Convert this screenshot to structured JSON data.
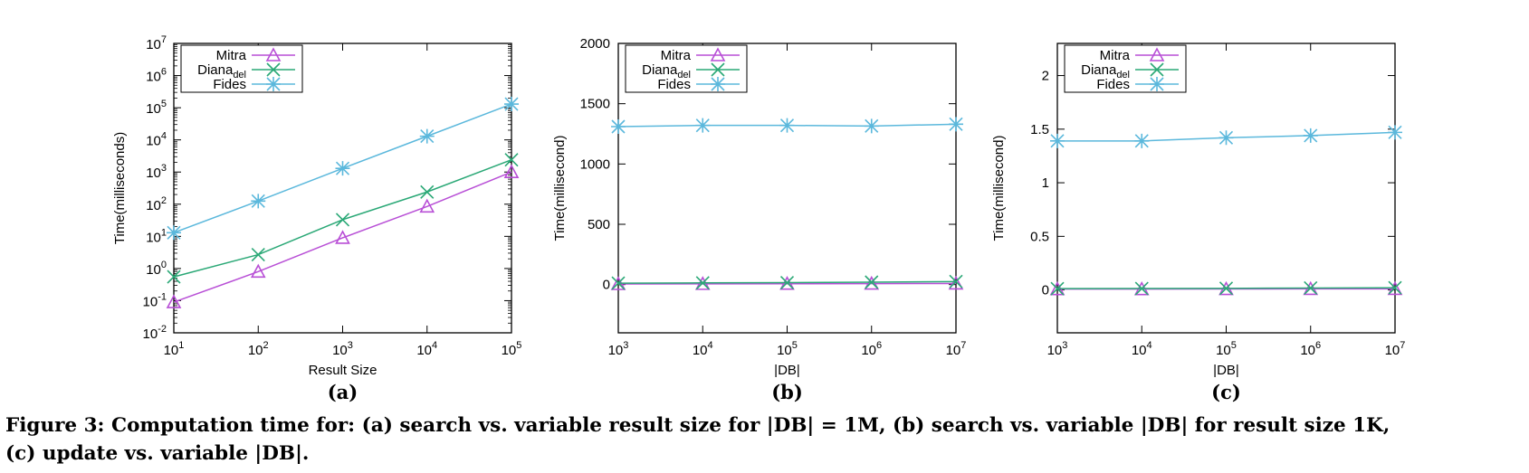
{
  "caption": {
    "line1": "Figure 3: Computation time for: (a) search vs. variable result size for |DB| = 1M, (b) search vs. variable |DB| for result size 1K,",
    "line2": "(c) update vs. variable |DB|."
  },
  "colors": {
    "Mitra": "#b84fd6",
    "Diana_del": "#2aa876",
    "Fides": "#5bb8dc"
  },
  "chart_data": [
    {
      "type": "line",
      "sublabel": "(a)",
      "xlabel": "Result Size",
      "ylabel": "Time(milliseconds)",
      "xscale": "log",
      "yscale": "log",
      "xlim": [
        10,
        100000
      ],
      "ylim": [
        0.01,
        10000000
      ],
      "x_ticks": [
        {
          "base": "10",
          "exp": "1"
        },
        {
          "base": "10",
          "exp": "2"
        },
        {
          "base": "10",
          "exp": "3"
        },
        {
          "base": "10",
          "exp": "4"
        },
        {
          "base": "10",
          "exp": "5"
        }
      ],
      "y_ticks": [
        {
          "base": "10",
          "exp": "-2"
        },
        {
          "base": "10",
          "exp": "-1"
        },
        {
          "base": "10",
          "exp": "0"
        },
        {
          "base": "10",
          "exp": "1"
        },
        {
          "base": "10",
          "exp": "2"
        },
        {
          "base": "10",
          "exp": "3"
        },
        {
          "base": "10",
          "exp": "4"
        },
        {
          "base": "10",
          "exp": "5"
        },
        {
          "base": "10",
          "exp": "6"
        },
        {
          "base": "10",
          "exp": "7"
        }
      ],
      "x": [
        10,
        100,
        1000,
        10000,
        100000
      ],
      "legend_position": "top-left",
      "series": [
        {
          "name": "Mitra",
          "name_sub": "",
          "marker": "triangle",
          "values": [
            0.09,
            0.8,
            9,
            85,
            1000
          ]
        },
        {
          "name": "Diana",
          "name_sub": "del",
          "marker": "x",
          "values": [
            0.55,
            2.7,
            33,
            240,
            2400
          ]
        },
        {
          "name": "Fides",
          "name_sub": "",
          "marker": "star",
          "values": [
            13,
            125,
            1300,
            13000,
            130000
          ]
        }
      ]
    },
    {
      "type": "line",
      "sublabel": "(b)",
      "xlabel": "|DB|",
      "ylabel": "Time(millisecond)",
      "xscale": "log",
      "yscale": "linear",
      "xlim": [
        1000,
        10000000
      ],
      "ylim": [
        -400,
        2000
      ],
      "x_ticks": [
        {
          "base": "10",
          "exp": "3"
        },
        {
          "base": "10",
          "exp": "4"
        },
        {
          "base": "10",
          "exp": "5"
        },
        {
          "base": "10",
          "exp": "6"
        },
        {
          "base": "10",
          "exp": "7"
        }
      ],
      "y_ticks": [
        "0",
        "500",
        "1000",
        "1500",
        "2000"
      ],
      "x": [
        1000,
        10000,
        100000,
        1000000,
        10000000
      ],
      "legend_position": "top-left",
      "series": [
        {
          "name": "Mitra",
          "name_sub": "",
          "marker": "triangle",
          "values": [
            5,
            6,
            7,
            8,
            9
          ]
        },
        {
          "name": "Diana",
          "name_sub": "del",
          "marker": "x",
          "values": [
            12,
            14,
            16,
            20,
            25
          ]
        },
        {
          "name": "Fides",
          "name_sub": "",
          "marker": "star",
          "values": [
            1310,
            1320,
            1320,
            1315,
            1330
          ]
        }
      ]
    },
    {
      "type": "line",
      "sublabel": "(c)",
      "xlabel": "|DB|",
      "ylabel": "Time(millisecond)",
      "xscale": "log",
      "yscale": "linear",
      "xlim": [
        1000,
        10000000
      ],
      "ylim": [
        -0.4,
        2.3
      ],
      "x_ticks": [
        {
          "base": "10",
          "exp": "3"
        },
        {
          "base": "10",
          "exp": "4"
        },
        {
          "base": "10",
          "exp": "5"
        },
        {
          "base": "10",
          "exp": "6"
        },
        {
          "base": "10",
          "exp": "7"
        }
      ],
      "y_ticks": [
        "0",
        "0.5",
        "1",
        "1.5",
        "2"
      ],
      "x": [
        1000,
        10000,
        100000,
        1000000,
        10000000
      ],
      "legend_position": "top-left",
      "series": [
        {
          "name": "Mitra",
          "name_sub": "",
          "marker": "triangle",
          "values": [
            0.008,
            0.008,
            0.009,
            0.01,
            0.01
          ]
        },
        {
          "name": "Diana",
          "name_sub": "del",
          "marker": "x",
          "values": [
            0.012,
            0.013,
            0.015,
            0.018,
            0.02
          ]
        },
        {
          "name": "Fides",
          "name_sub": "",
          "marker": "star",
          "values": [
            1.39,
            1.39,
            1.42,
            1.44,
            1.47
          ]
        }
      ]
    }
  ]
}
